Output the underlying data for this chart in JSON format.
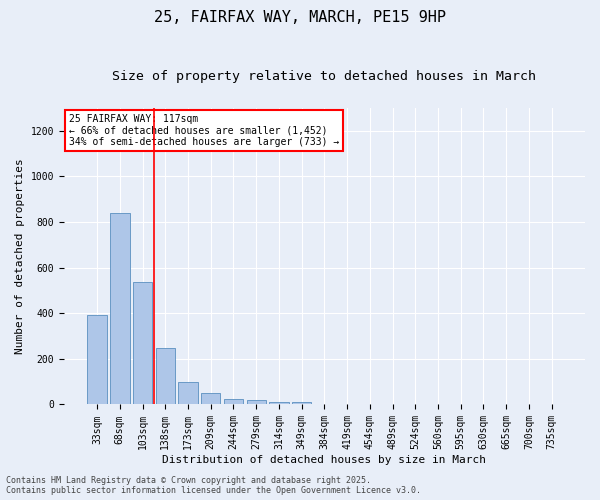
{
  "title1": "25, FAIRFAX WAY, MARCH, PE15 9HP",
  "title2": "Size of property relative to detached houses in March",
  "xlabel": "Distribution of detached houses by size in March",
  "ylabel": "Number of detached properties",
  "categories": [
    "33sqm",
    "68sqm",
    "103sqm",
    "138sqm",
    "173sqm",
    "209sqm",
    "244sqm",
    "279sqm",
    "314sqm",
    "349sqm",
    "384sqm",
    "419sqm",
    "454sqm",
    "489sqm",
    "524sqm",
    "560sqm",
    "595sqm",
    "630sqm",
    "665sqm",
    "700sqm",
    "735sqm"
  ],
  "values": [
    390,
    840,
    535,
    248,
    100,
    52,
    22,
    18,
    13,
    10,
    0,
    0,
    0,
    0,
    0,
    0,
    0,
    0,
    0,
    0,
    0
  ],
  "bar_color": "#aec6e8",
  "bar_edge_color": "#5a8fc0",
  "vline_x_index": 2.5,
  "vline_color": "red",
  "annotation_text": "25 FAIRFAX WAY: 117sqm\n← 66% of detached houses are smaller (1,452)\n34% of semi-detached houses are larger (733) →",
  "annotation_box_color": "white",
  "annotation_box_edge_color": "red",
  "ylim": [
    0,
    1300
  ],
  "yticks": [
    0,
    200,
    400,
    600,
    800,
    1000,
    1200
  ],
  "footer1": "Contains HM Land Registry data © Crown copyright and database right 2025.",
  "footer2": "Contains public sector information licensed under the Open Government Licence v3.0.",
  "bg_color": "#e8eef8",
  "grid_color": "#ffffff",
  "title_fontsize": 11,
  "subtitle_fontsize": 9.5,
  "label_fontsize": 8,
  "tick_fontsize": 7,
  "annot_fontsize": 7,
  "footer_fontsize": 6
}
